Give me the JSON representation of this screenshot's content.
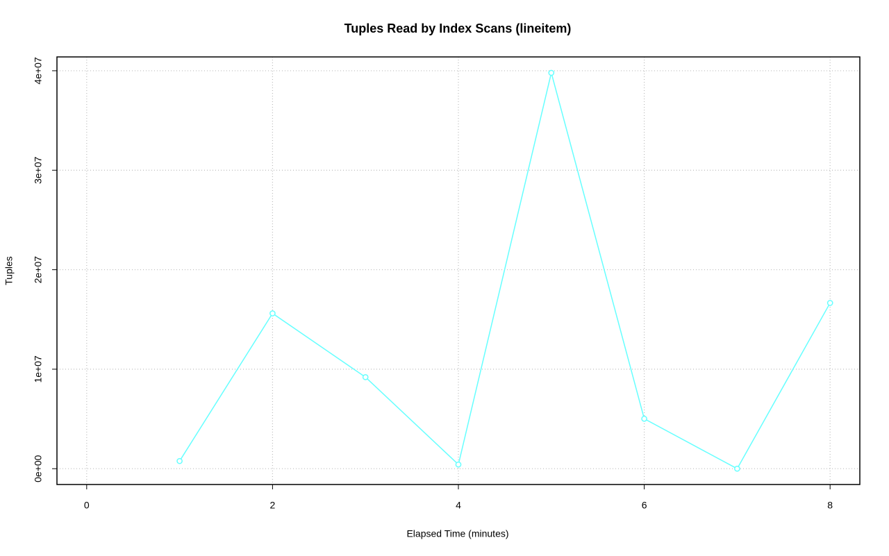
{
  "chart_data": {
    "type": "line",
    "title": "Tuples Read by Index Scans (lineitem)",
    "x_label": "Elapsed Time (minutes)",
    "y_label": "Tuples",
    "x": [
      1,
      2,
      3,
      4,
      5,
      6,
      7,
      8
    ],
    "values": [
      770000,
      15610000,
      9200000,
      420000,
      39790000,
      5020000,
      0,
      16660000
    ],
    "color": "#66ffff",
    "xlim": [
      -0.32,
      8.32
    ],
    "xticks": [
      0,
      2,
      4,
      6,
      8
    ],
    "ylim": [
      -1590000,
      41390000
    ],
    "yticks": [
      {
        "value": 0,
        "label": "0e+00"
      },
      {
        "value": 10000000,
        "label": "1e+07"
      },
      {
        "value": 20000000,
        "label": "2e+07"
      },
      {
        "value": 30000000,
        "label": "3e+07"
      },
      {
        "value": 40000000,
        "label": "4e+07"
      }
    ],
    "grid": true
  }
}
